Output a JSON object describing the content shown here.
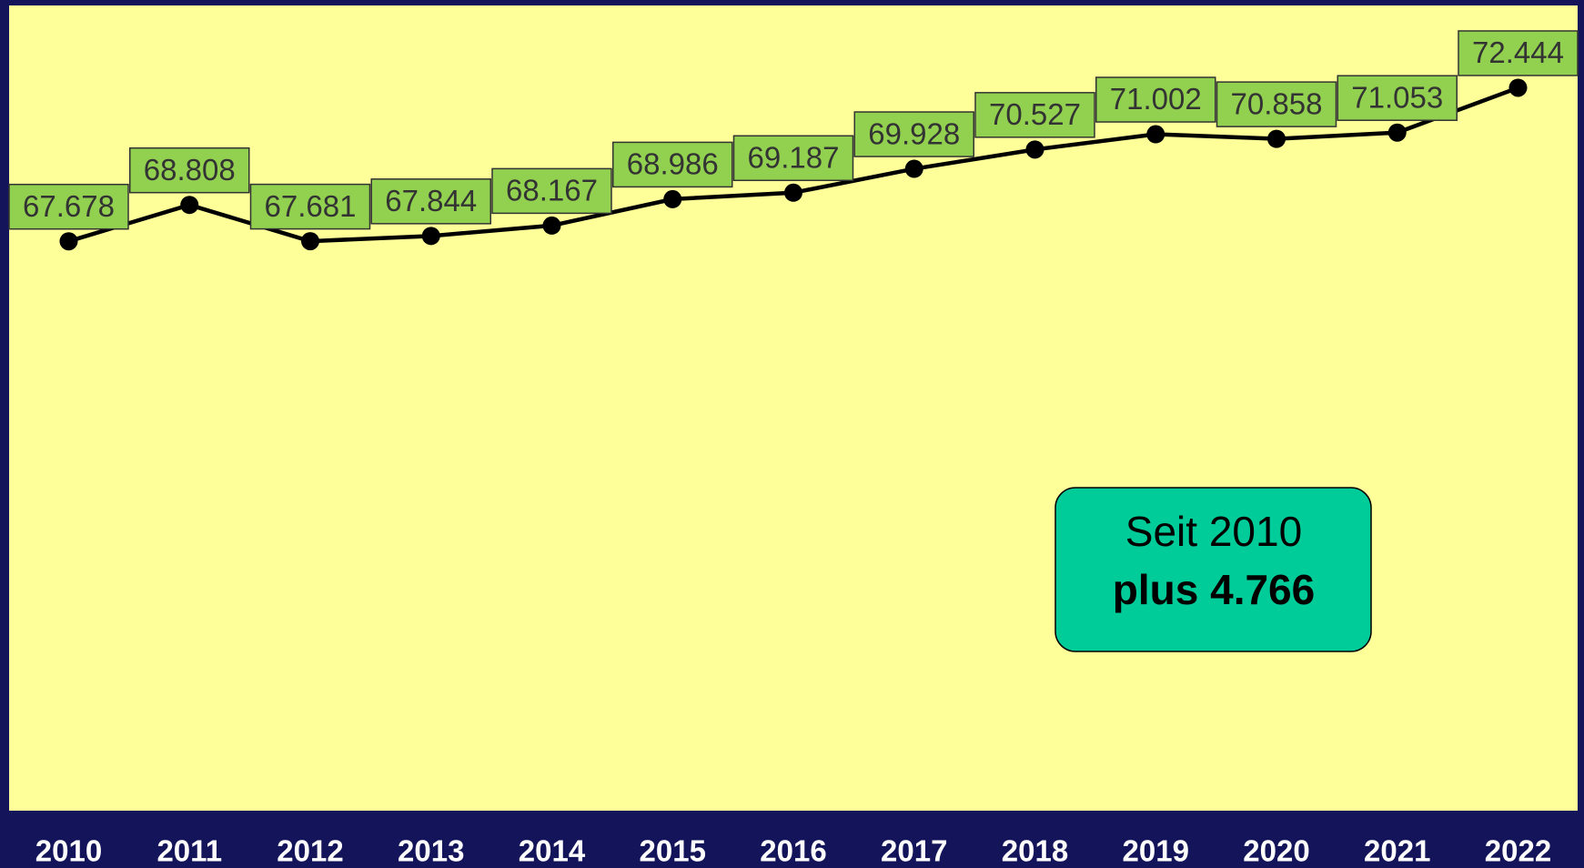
{
  "chart_data": {
    "type": "line",
    "categories": [
      "2010",
      "2011",
      "2012",
      "2013",
      "2014",
      "2015",
      "2016",
      "2017",
      "2018",
      "2019",
      "2020",
      "2021",
      "2022"
    ],
    "series": [
      {
        "color": "#000000",
        "values": [
          67678,
          68808,
          67681,
          67844,
          68167,
          68986,
          69187,
          69928,
          70527,
          71002,
          70858,
          71053,
          72444
        ],
        "value_labels": [
          "67.678",
          "68.808",
          "67.681",
          "67.844",
          "68.167",
          "68.986",
          "69.187",
          "69.928",
          "70.527",
          "71.002",
          "70.858",
          "71.053",
          "72.444"
        ]
      }
    ],
    "ylim": [
      50000,
      75000
    ],
    "annotations": [
      "Seit 2010",
      "plus 4.766"
    ]
  }
}
